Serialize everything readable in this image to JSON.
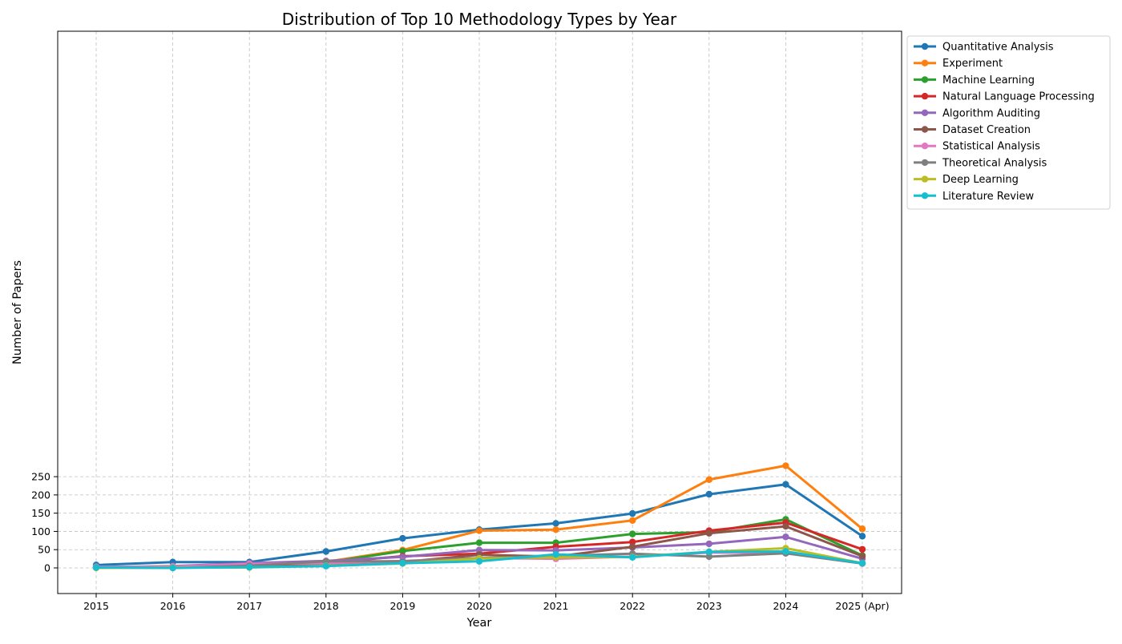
{
  "chart_data": {
    "type": "line",
    "title": "Distribution of Top 10 Methodology Types by Year",
    "xlabel": "Year",
    "ylabel": "Number of Papers",
    "categories": [
      "2015",
      "2016",
      "2017",
      "2018",
      "2019",
      "2020",
      "2021",
      "2022",
      "2023",
      "2024",
      "2025 (Apr)"
    ],
    "yticks": [
      0,
      50,
      100,
      150,
      200,
      250
    ],
    "ylim": [
      -14,
      294
    ],
    "grid": true,
    "legend_position": "outside-right",
    "series": [
      {
        "name": "Quantitative Analysis",
        "color": "#1f77b4",
        "values": [
          8,
          16,
          16,
          45,
          81,
          105,
          122,
          149,
          202,
          229,
          87
        ]
      },
      {
        "name": "Experiment",
        "color": "#ff7f0e",
        "values": [
          1,
          2,
          4,
          17,
          49,
          102,
          105,
          130,
          242,
          280,
          107
        ]
      },
      {
        "name": "Machine Learning",
        "color": "#2ca02c",
        "values": [
          1,
          4,
          8,
          15,
          46,
          69,
          69,
          93,
          98,
          133,
          34
        ]
      },
      {
        "name": "Natural Language Processing",
        "color": "#d62728",
        "values": [
          1,
          3,
          3,
          14,
          32,
          39,
          58,
          71,
          102,
          124,
          51
        ]
      },
      {
        "name": "Algorithm Auditing",
        "color": "#9467bd",
        "values": [
          2,
          5,
          13,
          19,
          30,
          49,
          48,
          56,
          66,
          85,
          25
        ]
      },
      {
        "name": "Dataset Creation",
        "color": "#8c564b",
        "values": [
          1,
          2,
          4,
          7,
          16,
          36,
          31,
          58,
          95,
          114,
          32
        ]
      },
      {
        "name": "Statistical Analysis",
        "color": "#e377c2",
        "values": [
          3,
          4,
          11,
          13,
          19,
          27,
          25,
          31,
          42,
          41,
          13
        ]
      },
      {
        "name": "Theoretical Analysis",
        "color": "#7f7f7f",
        "values": [
          1,
          0,
          6,
          18,
          18,
          27,
          33,
          39,
          31,
          40,
          12
        ]
      },
      {
        "name": "Deep Learning",
        "color": "#bcbd22",
        "values": [
          0,
          1,
          1,
          6,
          12,
          26,
          29,
          30,
          44,
          54,
          13
        ]
      },
      {
        "name": "Literature Review",
        "color": "#17becf",
        "values": [
          1,
          0,
          2,
          5,
          13,
          18,
          37,
          29,
          44,
          45,
          13
        ]
      }
    ]
  }
}
